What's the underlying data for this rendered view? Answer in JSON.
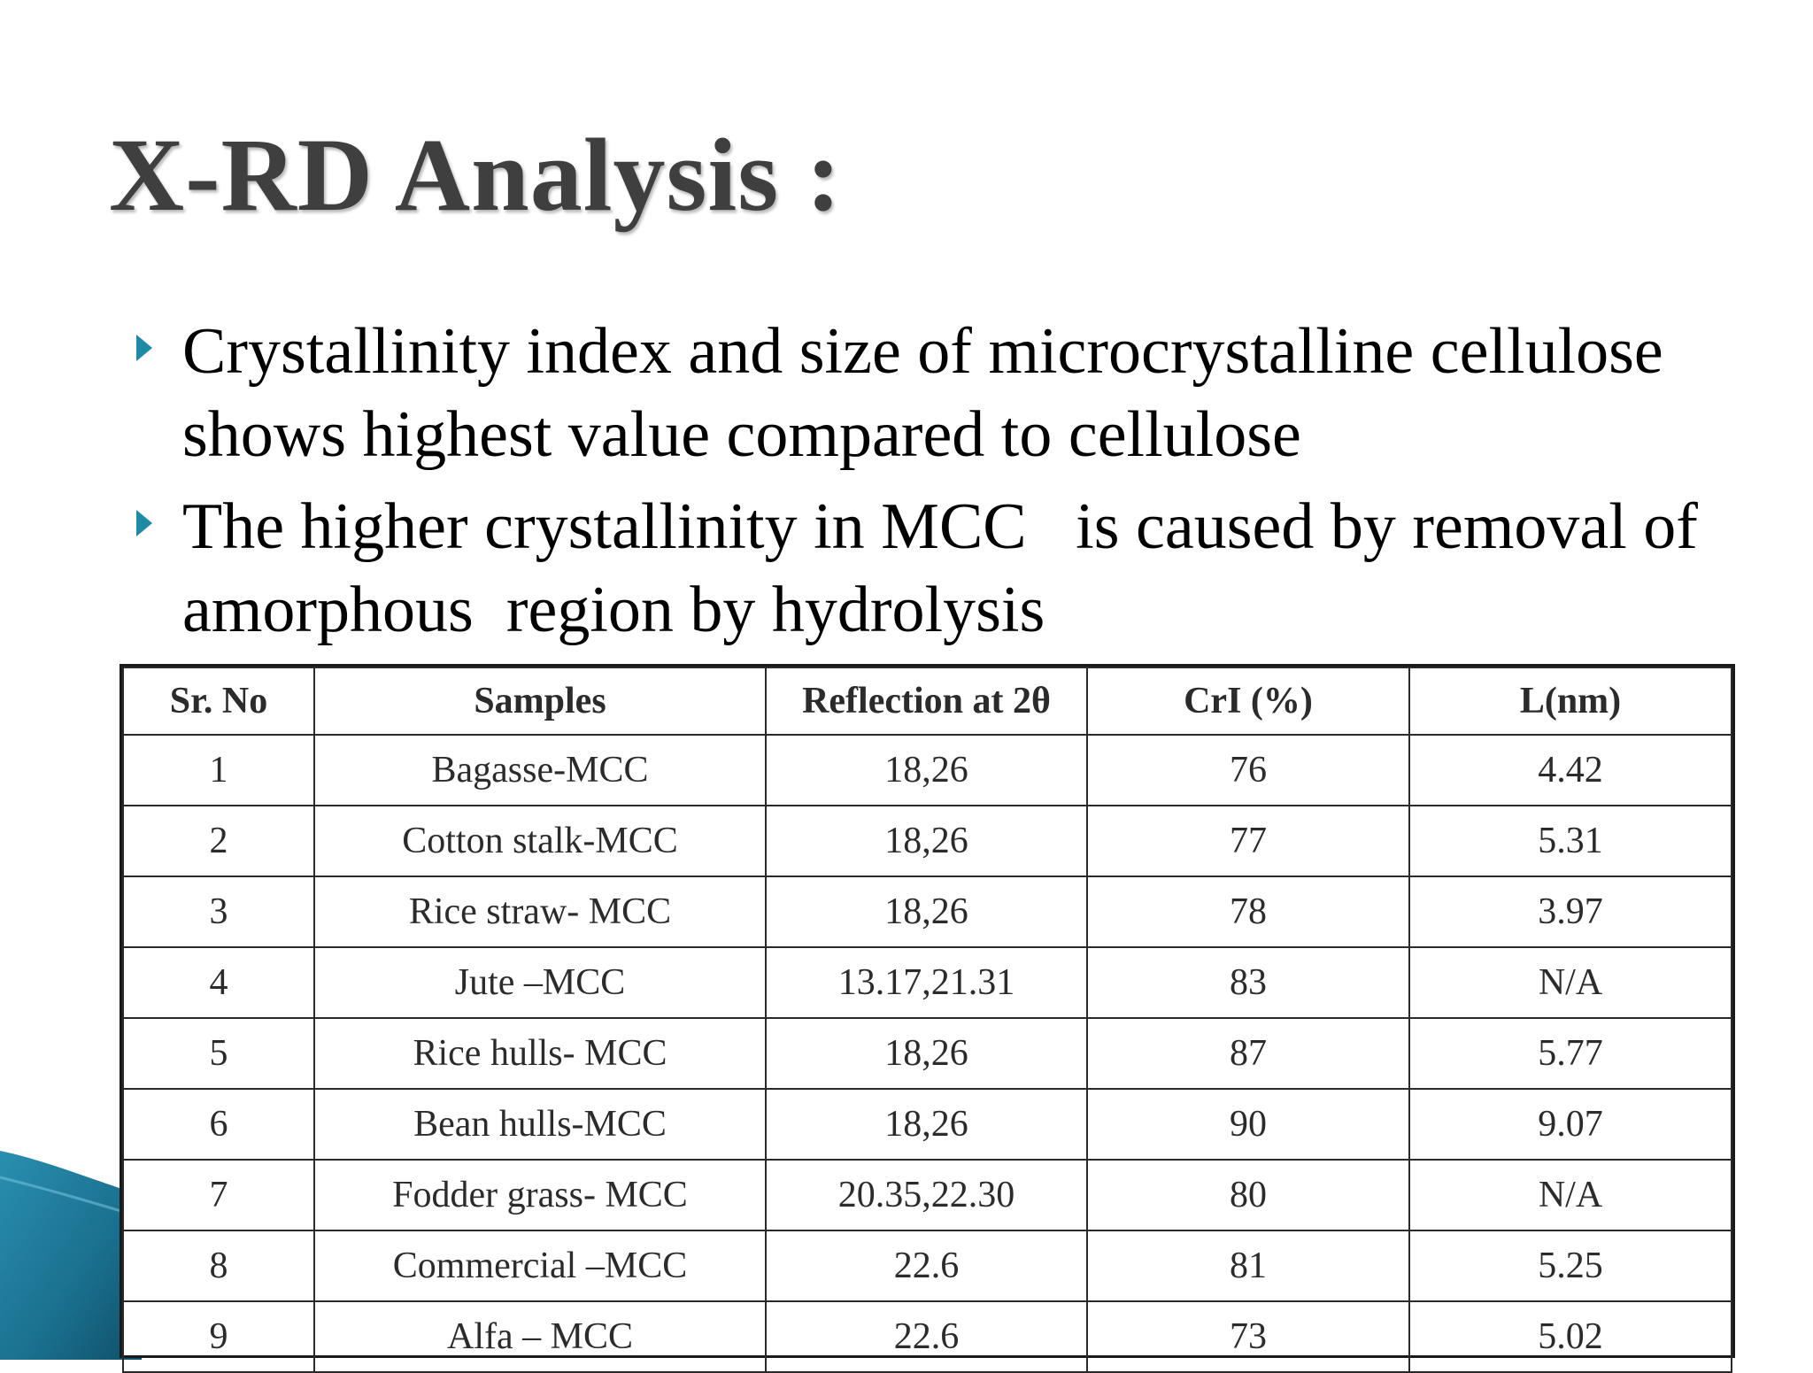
{
  "slide": {
    "title": "X-RD Analysis :",
    "bullets": [
      "Crystallinity index and size of microcrystalline cellulose shows highest value compared to cellulose",
      "The higher crystallinity in MCC   is caused by removal of amorphous  region by hydrolysis"
    ],
    "accent_color": "#1f8aa6"
  },
  "table": {
    "headers": [
      "Sr. No",
      "Samples",
      "Reflection at 2θ",
      "CrI (%)",
      "L(nm)"
    ],
    "rows": [
      [
        "1",
        "Bagasse-MCC",
        "18,26",
        "76",
        "4.42"
      ],
      [
        "2",
        "Cotton stalk-MCC",
        "18,26",
        "77",
        "5.31"
      ],
      [
        "3",
        "Rice straw- MCC",
        "18,26",
        "78",
        "3.97"
      ],
      [
        "4",
        "Jute –MCC",
        "13.17,21.31",
        "83",
        "N/A"
      ],
      [
        "5",
        "Rice hulls- MCC",
        "18,26",
        "87",
        "5.77"
      ],
      [
        "6",
        "Bean hulls-MCC",
        "18,26",
        "90",
        "9.07"
      ],
      [
        "7",
        "Fodder grass- MCC",
        "20.35,22.30",
        "80",
        "N/A"
      ],
      [
        "8",
        "Commercial –MCC",
        "22.6",
        "81",
        "5.25"
      ],
      [
        "9",
        "Alfa – MCC",
        "22.6",
        "73",
        "5.02"
      ]
    ]
  }
}
